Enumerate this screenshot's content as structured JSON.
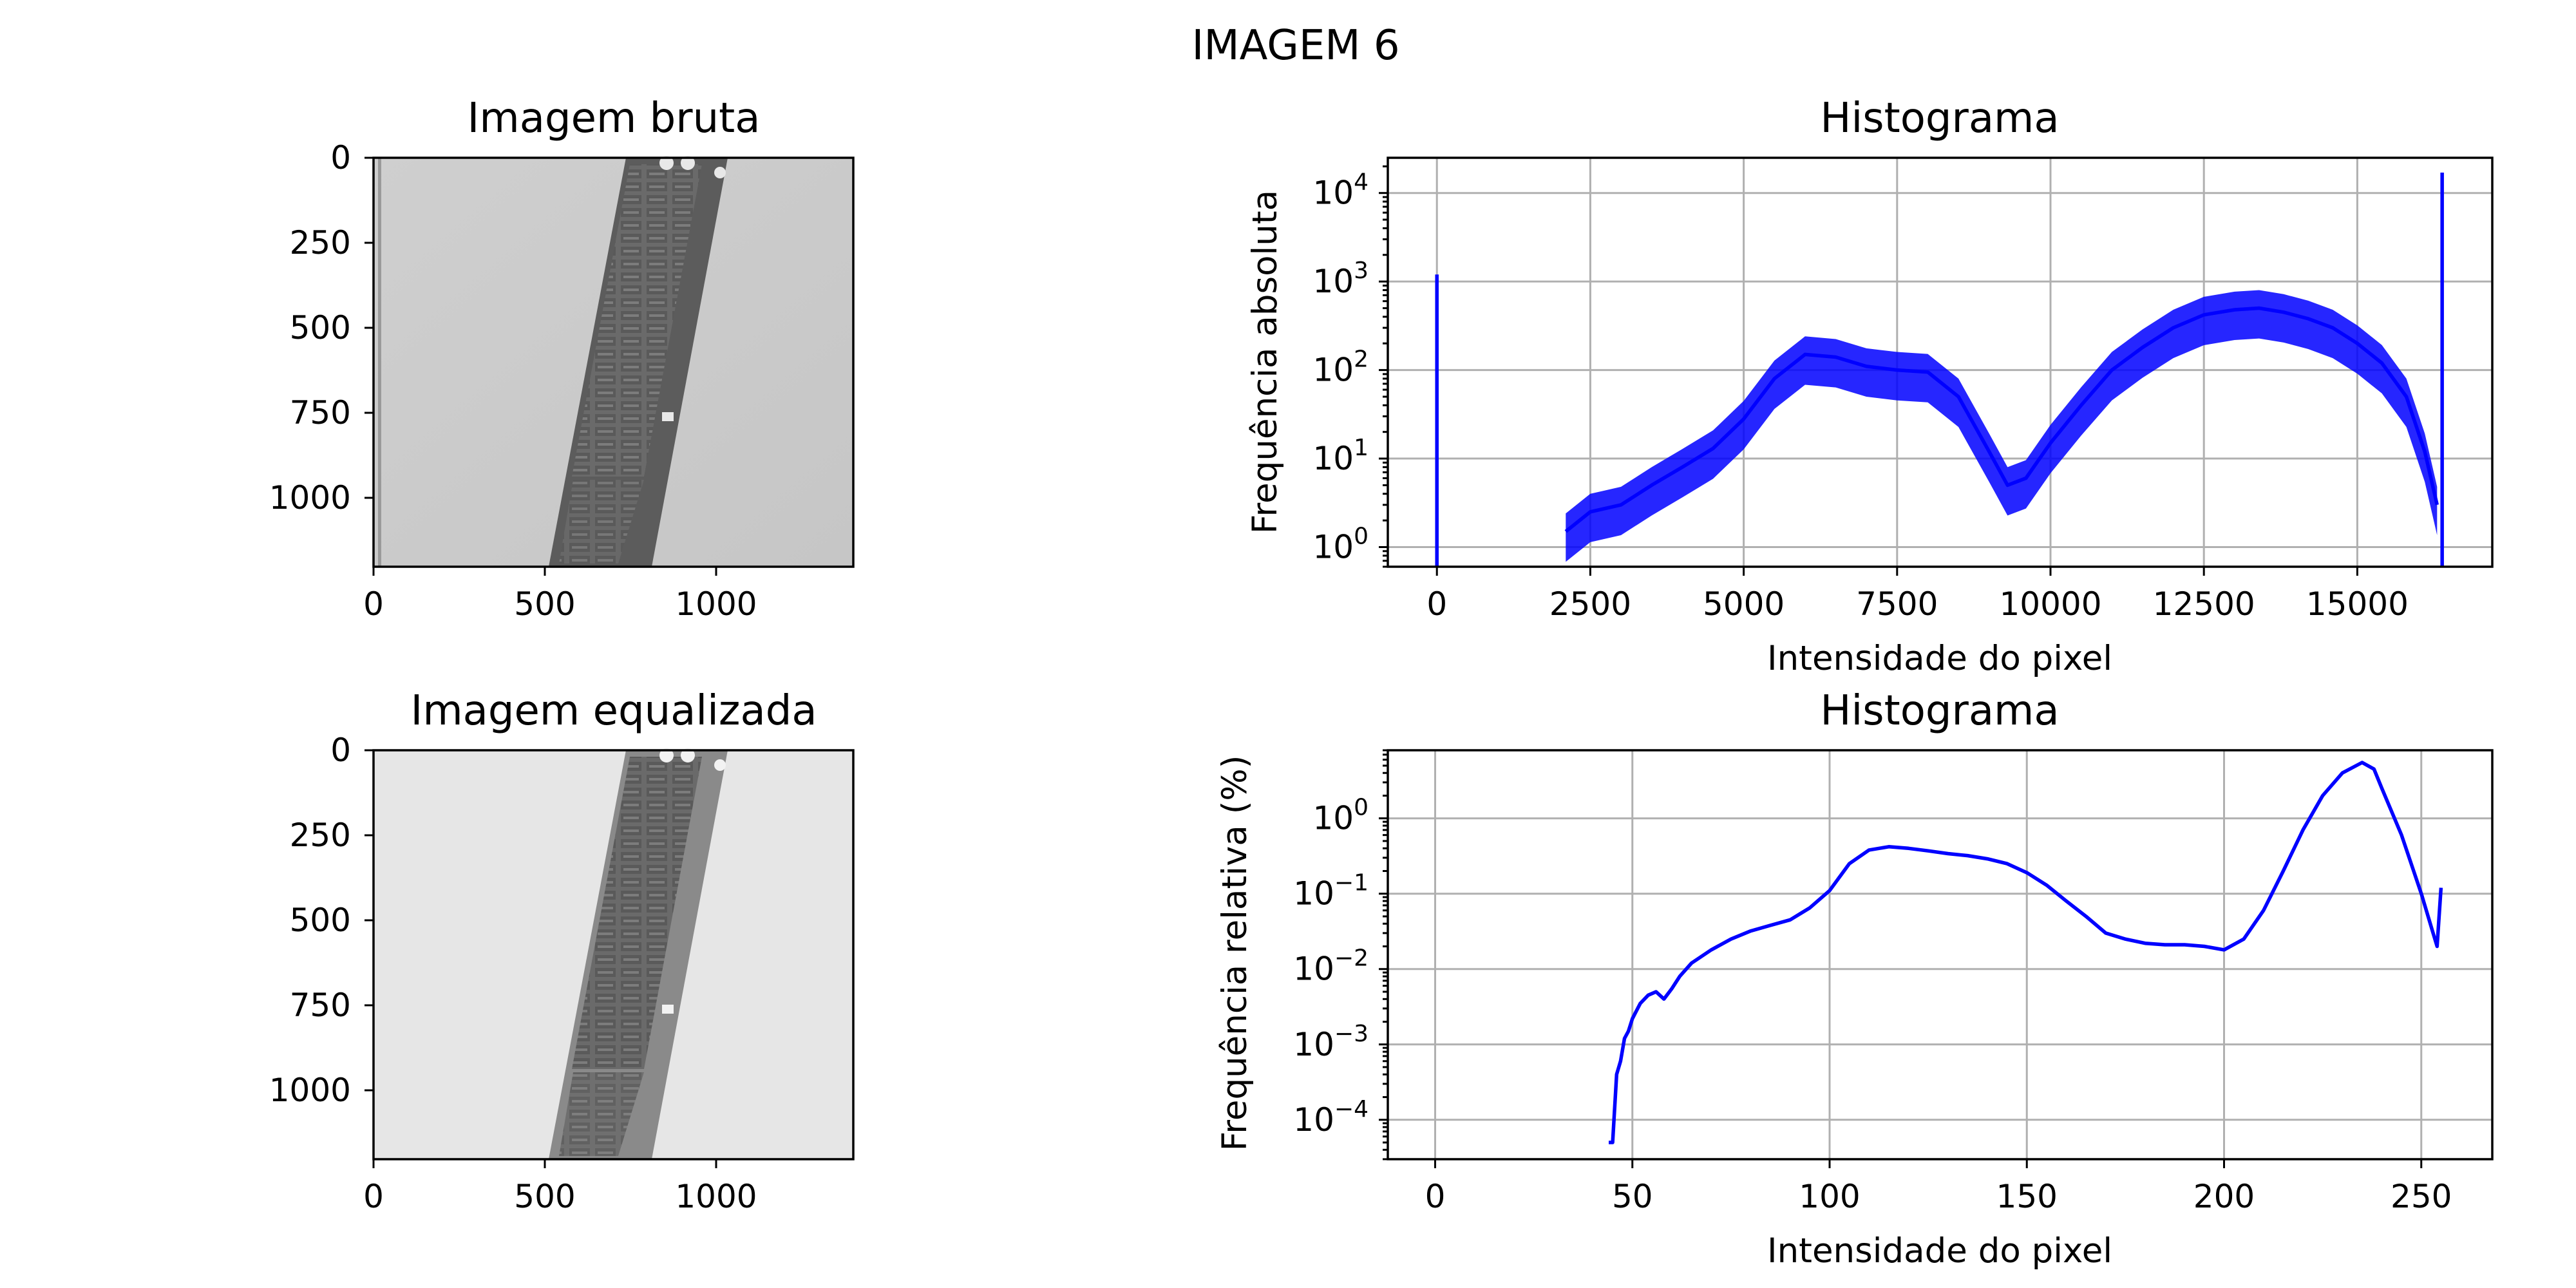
{
  "figure": {
    "title": "IMAGEM 6"
  },
  "colors": {
    "series": "#0000ff",
    "grid": "#b0b0b0"
  },
  "chart_data": [
    {
      "type": "image",
      "title": "Imagem bruta",
      "content": "grayscale X-ray of a memory module strip (brighter background)",
      "x_ticks": [
        "0",
        "500",
        "1000"
      ],
      "y_ticks": [
        "0",
        "250",
        "500",
        "750",
        "1000"
      ],
      "xlim": [
        0,
        1400
      ],
      "ylim": [
        1200,
        0
      ]
    },
    {
      "type": "line",
      "title": "Histograma",
      "xlabel": "Intensidade do pixel",
      "ylabel": "Frequência absoluta",
      "y_scale": "log",
      "grid": true,
      "xlim": [
        -800,
        17200
      ],
      "ylim": [
        0.6,
        25000
      ],
      "x_ticks": [
        "0",
        "2500",
        "5000",
        "7500",
        "10000",
        "12500",
        "15000"
      ],
      "y_ticks": [
        {
          "base": "10",
          "exp": "0"
        },
        {
          "base": "10",
          "exp": "1"
        },
        {
          "base": "10",
          "exp": "2"
        },
        {
          "base": "10",
          "exp": "3"
        },
        {
          "base": "10",
          "exp": "4"
        }
      ],
      "spikes": [
        {
          "x": 0,
          "y": 1200
        },
        {
          "x": 16383,
          "y": 17000
        }
      ],
      "x": [
        2100,
        2500,
        3000,
        3500,
        4000,
        4500,
        5000,
        5500,
        6000,
        6500,
        7000,
        7500,
        8000,
        8500,
        9000,
        9300,
        9600,
        10000,
        10500,
        11000,
        11500,
        12000,
        12500,
        13000,
        13400,
        13800,
        14200,
        14600,
        15000,
        15400,
        15800,
        16100,
        16300
      ],
      "y": [
        1.5,
        2.5,
        3,
        5,
        8,
        13,
        28,
        80,
        150,
        140,
        110,
        100,
        95,
        50,
        12,
        5,
        6,
        15,
        40,
        100,
        180,
        300,
        420,
        480,
        500,
        450,
        380,
        300,
        200,
        120,
        50,
        12,
        3
      ]
    },
    {
      "type": "image",
      "title": "Imagem equalizada",
      "content": "histogram-equalized grayscale X-ray of a memory module strip",
      "x_ticks": [
        "0",
        "500",
        "1000"
      ],
      "y_ticks": [
        "0",
        "250",
        "500",
        "750",
        "1000"
      ],
      "xlim": [
        0,
        1400
      ],
      "ylim": [
        1200,
        0
      ]
    },
    {
      "type": "line",
      "title": "Histograma",
      "xlabel": "Intensidade do pixel",
      "ylabel": "Frequência relativa (%)",
      "y_scale": "log",
      "grid": true,
      "xlim": [
        -12,
        268
      ],
      "ylim": [
        3e-05,
        8
      ],
      "x_ticks": [
        "0",
        "50",
        "100",
        "150",
        "200",
        "250"
      ],
      "y_ticks": [
        {
          "base": "10",
          "exp": "−4"
        },
        {
          "base": "10",
          "exp": "−3"
        },
        {
          "base": "10",
          "exp": "−2"
        },
        {
          "base": "10",
          "exp": "−1"
        },
        {
          "base": "10",
          "exp": "0"
        }
      ],
      "x": [
        44,
        45,
        46,
        47,
        48,
        49,
        50,
        52,
        54,
        56,
        58,
        60,
        62,
        65,
        70,
        75,
        80,
        85,
        90,
        95,
        100,
        105,
        110,
        115,
        120,
        125,
        130,
        135,
        140,
        145,
        150,
        155,
        160,
        165,
        170,
        175,
        180,
        185,
        190,
        195,
        200,
        205,
        210,
        215,
        220,
        225,
        230,
        235,
        238,
        240,
        245,
        250,
        253,
        254,
        255
      ],
      "y": [
        5e-05,
        5e-05,
        0.0004,
        0.0006,
        0.0012,
        0.0015,
        0.0022,
        0.0035,
        0.0045,
        0.005,
        0.004,
        0.0055,
        0.008,
        0.012,
        0.018,
        0.025,
        0.032,
        0.038,
        0.045,
        0.065,
        0.11,
        0.25,
        0.38,
        0.42,
        0.4,
        0.37,
        0.34,
        0.32,
        0.29,
        0.25,
        0.19,
        0.13,
        0.08,
        0.05,
        0.03,
        0.025,
        0.022,
        0.021,
        0.021,
        0.02,
        0.018,
        0.025,
        0.06,
        0.2,
        0.7,
        2,
        4,
        5.5,
        4.5,
        2.5,
        0.6,
        0.1,
        0.03,
        0.02,
        0.12
      ]
    }
  ]
}
